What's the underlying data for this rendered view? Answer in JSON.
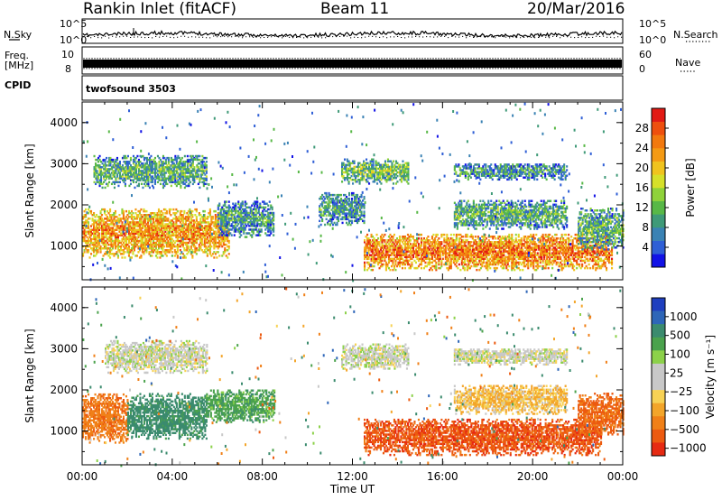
{
  "header": {
    "title": "Rankin Inlet (fitACF)",
    "beam": "Beam 11",
    "date": "20/Mar/2016"
  },
  "panels": {
    "nsky_label": "N.Sky",
    "nsearch_label": "N.Search",
    "nsky_ticks": [
      "10^5",
      "10^0"
    ],
    "freq_label_top": "Freq.",
    "freq_label_unit": "[MHz]",
    "freq_ticks": [
      "10",
      "8"
    ],
    "nave_label": "Nave",
    "nave_ticks": [
      "60",
      "0"
    ],
    "cpid_label": "CPID",
    "cpid_value": "twofsound 3503"
  },
  "chart_data": [
    {
      "type": "heatmap",
      "name": "power",
      "ylabel": "Slant Range [km]",
      "xlabel": "",
      "xlim": [
        "00:00",
        "24:00"
      ],
      "ylim": [
        180,
        4500
      ],
      "x_ticks": [
        "00:00",
        "04:00",
        "08:00",
        "12:00",
        "16:00",
        "20:00",
        "00:00"
      ],
      "y_ticks": [
        1000,
        2000,
        3000,
        4000
      ],
      "colorbar": {
        "label": "Power [dB]",
        "ticks": [
          4,
          8,
          12,
          16,
          20,
          24,
          28
        ],
        "range": [
          0,
          32
        ],
        "colors": [
          "#1212e6",
          "#2f5fd6",
          "#3a82b4",
          "#3f9a78",
          "#58b847",
          "#8fd23a",
          "#d6e02a",
          "#f0c31e",
          "#f49a14",
          "#f2790f",
          "#ee4f0e",
          "#e21a14"
        ]
      },
      "echo_regions": [
        {
          "t_start": 0.0,
          "t_end": 6.5,
          "range_min": 700,
          "range_max": 1900,
          "power_db": 24
        },
        {
          "t_start": 0.5,
          "t_end": 5.5,
          "range_min": 2400,
          "range_max": 3200,
          "power_db": 12
        },
        {
          "t_start": 6.0,
          "t_end": 8.5,
          "range_min": 1200,
          "range_max": 2100,
          "power_db": 10
        },
        {
          "t_start": 10.5,
          "t_end": 12.5,
          "range_min": 1500,
          "range_max": 2300,
          "power_db": 10
        },
        {
          "t_start": 11.5,
          "t_end": 14.5,
          "range_min": 2500,
          "range_max": 3100,
          "power_db": 14
        },
        {
          "t_start": 12.5,
          "t_end": 23.5,
          "range_min": 400,
          "range_max": 1300,
          "power_db": 26
        },
        {
          "t_start": 16.5,
          "t_end": 21.5,
          "range_min": 1400,
          "range_max": 2100,
          "power_db": 12
        },
        {
          "t_start": 16.5,
          "t_end": 21.5,
          "range_min": 2600,
          "range_max": 3000,
          "power_db": 10
        },
        {
          "t_start": 22.0,
          "t_end": 24.0,
          "range_min": 900,
          "range_max": 1900,
          "power_db": 12
        }
      ]
    },
    {
      "type": "heatmap",
      "name": "velocity",
      "ylabel": "Slant Range [km]",
      "xlabel": "Time UT",
      "xlim": [
        "00:00",
        "24:00"
      ],
      "ylim": [
        180,
        4500
      ],
      "x_ticks": [
        "00:00",
        "04:00",
        "08:00",
        "12:00",
        "16:00",
        "20:00",
        "00:00"
      ],
      "y_ticks": [
        1000,
        2000,
        3000,
        4000
      ],
      "colorbar": {
        "label": "Velocity [m s⁻¹]",
        "ticks": [
          "1000",
          "500",
          "100",
          "25",
          "−25",
          "−100",
          "−500",
          "−1000"
        ],
        "colors": [
          "#1f3fbf",
          "#2e66b8",
          "#3b8b6e",
          "#4ba24d",
          "#8cd14a",
          "#c8c8c8",
          "#c8c8c8",
          "#f7d255",
          "#f3a52a",
          "#f08018",
          "#ec5a10",
          "#e62a12"
        ]
      },
      "echo_regions": [
        {
          "t_start": 0.0,
          "t_end": 2.0,
          "range_min": 700,
          "range_max": 1900,
          "velocity": -200
        },
        {
          "t_start": 2.0,
          "t_end": 5.5,
          "range_min": 800,
          "range_max": 1900,
          "velocity": 150
        },
        {
          "t_start": 5.5,
          "t_end": 8.5,
          "range_min": 1200,
          "range_max": 2000,
          "velocity": 80
        },
        {
          "t_start": 1.0,
          "t_end": 5.5,
          "range_min": 2400,
          "range_max": 3200,
          "velocity": 0
        },
        {
          "t_start": 11.5,
          "t_end": 14.5,
          "range_min": 2500,
          "range_max": 3100,
          "velocity": 0
        },
        {
          "t_start": 12.5,
          "t_end": 23.0,
          "range_min": 400,
          "range_max": 1300,
          "velocity": -400
        },
        {
          "t_start": 16.5,
          "t_end": 21.5,
          "range_min": 1400,
          "range_max": 2100,
          "velocity": -50
        },
        {
          "t_start": 16.5,
          "t_end": 21.5,
          "range_min": 2600,
          "range_max": 3000,
          "velocity": 0
        },
        {
          "t_start": 22.0,
          "t_end": 24.0,
          "range_min": 900,
          "range_max": 1900,
          "velocity": -300
        }
      ]
    }
  ]
}
